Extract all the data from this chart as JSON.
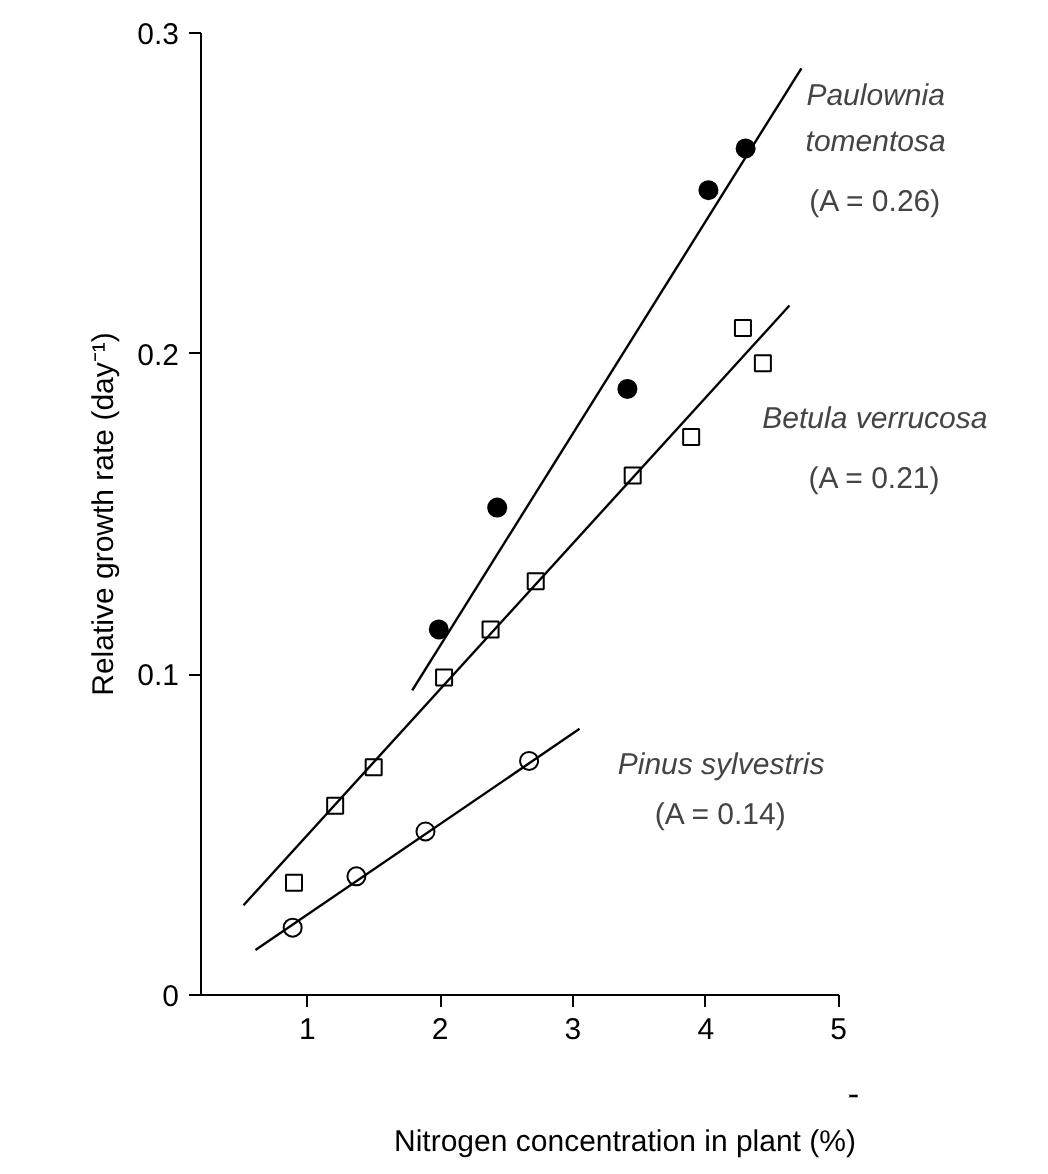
{
  "chart_data": {
    "type": "scatter",
    "xlabel": "Nitrogen concentration in plant (%)",
    "ylabel": "Relative growth rate (day⁻¹)",
    "xlim": [
      0.2,
      5
    ],
    "ylim": [
      0,
      0.3
    ],
    "xticks": [
      1,
      2,
      3,
      4,
      5
    ],
    "yticks": [
      0,
      0.1,
      0.2,
      0.3
    ],
    "grid": false,
    "series": [
      {
        "name": "Paulownia tomentosa",
        "color": "#000000",
        "marker": "circle",
        "x": [
          1.99,
          2.43,
          3.41,
          4.02,
          4.3
        ],
        "values": [
          0.114,
          0.152,
          0.189,
          0.251,
          0.264
        ]
      },
      {
        "type": "line",
        "color": "#000000",
        "x": [
          1.79,
          4.72
        ],
        "values": [
          0.095,
          0.289
        ]
      },
      {
        "name": "Betula verrucosa",
        "color": "#000000",
        "marker": "square-open",
        "x": [
          0.9,
          1.21,
          1.5,
          2.03,
          2.38,
          2.72,
          3.45,
          3.89,
          4.28,
          4.43
        ],
        "values": [
          0.035,
          0.059,
          0.071,
          0.099,
          0.114,
          0.129,
          0.162,
          0.174,
          0.208,
          0.197
        ]
      },
      {
        "type": "line",
        "color": "#000000",
        "x": [
          0.52,
          4.63
        ],
        "values": [
          0.028,
          0.215
        ]
      },
      {
        "name": "Pinus sylvestris",
        "color": "#000000",
        "marker": "circle-open",
        "x": [
          0.89,
          1.37,
          1.89,
          2.67
        ],
        "values": [
          0.021,
          0.037,
          0.051,
          0.073
        ]
      },
      {
        "type": "line",
        "color": "#000000",
        "x": [
          0.61,
          3.05
        ],
        "values": [
          0.014,
          0.083
        ]
      }
    ],
    "annotations": [
      "(A = 0.26)",
      "(A = 0.21)",
      "(A = 0.14)"
    ]
  }
}
